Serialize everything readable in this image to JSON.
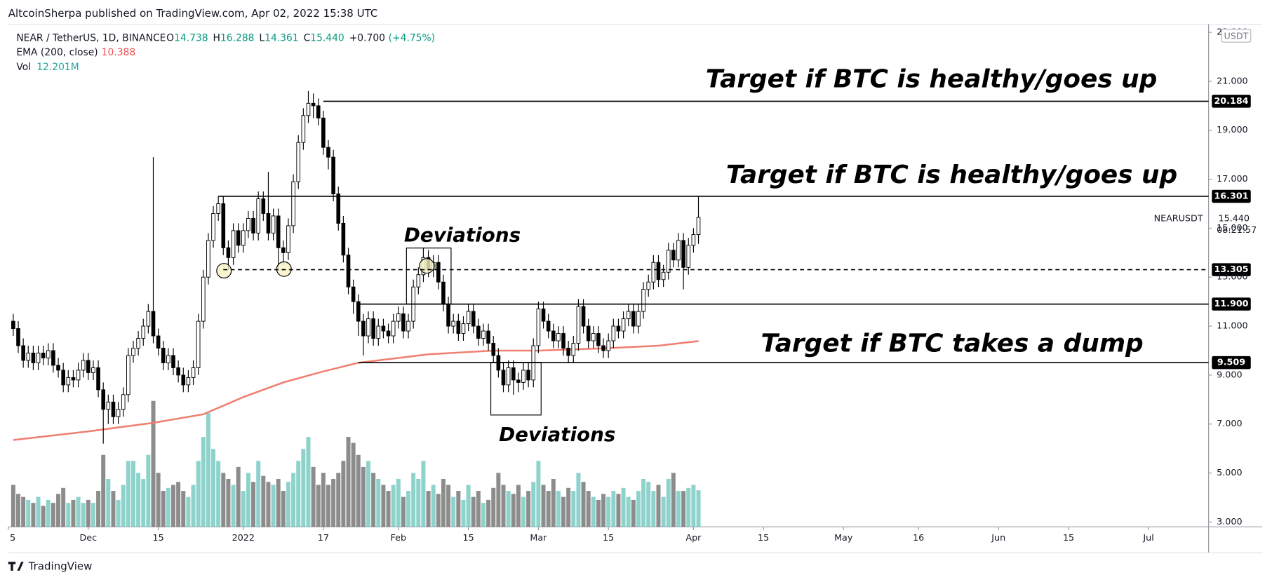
{
  "header": "AltcoinSherpa published on TradingView.com, Apr 02, 2022 15:38 UTC",
  "footer": "TradingView",
  "chart_data": {
    "type": "candlestick",
    "symbol_line": "NEAR / TetherUS, 1D, BINANCE",
    "ohlc_legend": [
      {
        "key": "O",
        "text": "14.738"
      },
      {
        "key": "H",
        "text": "16.288"
      },
      {
        "key": "L",
        "text": "14.361"
      },
      {
        "key": "C",
        "text": "15.440"
      },
      {
        "key": "+0.700",
        "text": "(+4.75%)"
      }
    ],
    "ema_legend": {
      "name": "EMA (200, close)",
      "text": "10.388"
    },
    "vol_legend": {
      "name": "Vol",
      "text": "12.201M"
    },
    "currency": "USDT",
    "last_label": {
      "symbol": "NEARUSDT",
      "price": "15.440",
      "countdown": "08:21:57"
    },
    "annotations": [
      "Target if BTC is healthy/goes up",
      "Target if BTC is healthy/goes up",
      "Target if BTC takes a dump",
      "Deviations",
      "Deviations"
    ],
    "up_color": "#ffffff",
    "down_color": "#000000",
    "volume_up_color": "#8ed3cb",
    "volume_down_color": "#8c8c8c",
    "ema_color": "#ef7f70",
    "grid": false,
    "xlim": [
      "2021-11-15",
      "2022-07-13"
    ],
    "ylim": [
      2.8,
      23.26
    ],
    "yticks": [
      {
        "value": 3,
        "label": "3.000"
      },
      {
        "value": 5,
        "label": "5.000"
      },
      {
        "value": 7,
        "label": "7.000"
      },
      {
        "value": 9,
        "label": "9.000"
      },
      {
        "value": 11,
        "label": "11.000"
      },
      {
        "value": 13,
        "label": "13.000"
      },
      {
        "value": 15,
        "label": "15.000"
      },
      {
        "value": 17,
        "label": "17.000"
      },
      {
        "value": 19,
        "label": "19.000"
      },
      {
        "value": 21,
        "label": "21.000"
      },
      {
        "value": 23,
        "label": "23.000"
      }
    ],
    "xticks": [
      {
        "value": "2021-11-15",
        "label": "5"
      },
      {
        "value": "2021-12-01",
        "label": "Dec"
      },
      {
        "value": "2021-12-15",
        "label": "15"
      },
      {
        "value": "2022-01-01",
        "label": "2022"
      },
      {
        "value": "2022-01-17",
        "label": "17"
      },
      {
        "value": "2022-02-01",
        "label": "Feb"
      },
      {
        "value": "2022-02-15",
        "label": "15"
      },
      {
        "value": "2022-03-01",
        "label": "Mar"
      },
      {
        "value": "2022-03-15",
        "label": "15"
      },
      {
        "value": "2022-04-01",
        "label": "Apr"
      },
      {
        "value": "2022-04-15",
        "label": "15"
      },
      {
        "value": "2022-05-01",
        "label": "May"
      },
      {
        "value": "2022-05-16",
        "label": "16"
      },
      {
        "value": "2022-06-01",
        "label": "Jun"
      },
      {
        "value": "2022-06-15",
        "label": "15"
      },
      {
        "value": "2022-07-01",
        "label": "Jul"
      }
    ],
    "levels": [
      {
        "value": 20.184,
        "start": "2022-01-17",
        "style": "solid"
      },
      {
        "value": 16.301,
        "start": "2021-12-27",
        "style": "solid"
      },
      {
        "value": 13.305,
        "start": "2021-12-28",
        "style": "dashed"
      },
      {
        "value": 11.9,
        "label": "11.900",
        "start": "2022-01-24",
        "style": "solid"
      },
      {
        "value": 9.509,
        "start": "2022-01-24",
        "style": "solid"
      }
    ],
    "ema": {
      "x": [
        "2021-11-16",
        "2021-12-01",
        "2021-12-14",
        "2021-12-24",
        "2022-01-01",
        "2022-01-09",
        "2022-01-17",
        "2022-01-24",
        "2022-02-07",
        "2022-02-20",
        "2022-03-01",
        "2022-03-15",
        "2022-03-25",
        "2022-04-02"
      ],
      "values": [
        6.35,
        6.7,
        7.05,
        7.4,
        8.1,
        8.7,
        9.15,
        9.5,
        9.85,
        10.0,
        10.0,
        10.1,
        10.2,
        10.388
      ]
    },
    "x": [
      "2021-11-16",
      "2021-11-17",
      "2021-11-18",
      "2021-11-19",
      "2021-11-20",
      "2021-11-21",
      "2021-11-22",
      "2021-11-23",
      "2021-11-24",
      "2021-11-25",
      "2021-11-26",
      "2021-11-27",
      "2021-11-28",
      "2021-11-29",
      "2021-11-30",
      "2021-12-01",
      "2021-12-02",
      "2021-12-03",
      "2021-12-04",
      "2021-12-05",
      "2021-12-06",
      "2021-12-07",
      "2021-12-08",
      "2021-12-09",
      "2021-12-10",
      "2021-12-11",
      "2021-12-12",
      "2021-12-13",
      "2021-12-14",
      "2021-12-15",
      "2021-12-16",
      "2021-12-17",
      "2021-12-18",
      "2021-12-19",
      "2021-12-20",
      "2021-12-21",
      "2021-12-22",
      "2021-12-23",
      "2021-12-24",
      "2021-12-25",
      "2021-12-26",
      "2021-12-27",
      "2021-12-28",
      "2021-12-29",
      "2021-12-30",
      "2021-12-31",
      "2022-01-01",
      "2022-01-02",
      "2022-01-03",
      "2022-01-04",
      "2022-01-05",
      "2022-01-06",
      "2022-01-07",
      "2022-01-08",
      "2022-01-09",
      "2022-01-10",
      "2022-01-11",
      "2022-01-12",
      "2022-01-13",
      "2022-01-14",
      "2022-01-15",
      "2022-01-16",
      "2022-01-17",
      "2022-01-18",
      "2022-01-19",
      "2022-01-20",
      "2022-01-21",
      "2022-01-22",
      "2022-01-23",
      "2022-01-24",
      "2022-01-25",
      "2022-01-26",
      "2022-01-27",
      "2022-01-28",
      "2022-01-29",
      "2022-01-30",
      "2022-01-31",
      "2022-02-01",
      "2022-02-02",
      "2022-02-03",
      "2022-02-04",
      "2022-02-05",
      "2022-02-06",
      "2022-02-07",
      "2022-02-08",
      "2022-02-09",
      "2022-02-10",
      "2022-02-11",
      "2022-02-12",
      "2022-02-13",
      "2022-02-14",
      "2022-02-15",
      "2022-02-16",
      "2022-02-17",
      "2022-02-18",
      "2022-02-19",
      "2022-02-20",
      "2022-02-21",
      "2022-02-22",
      "2022-02-23",
      "2022-02-24",
      "2022-02-25",
      "2022-02-26",
      "2022-02-27",
      "2022-02-28",
      "2022-03-01",
      "2022-03-02",
      "2022-03-03",
      "2022-03-04",
      "2022-03-05",
      "2022-03-06",
      "2022-03-07",
      "2022-03-08",
      "2022-03-09",
      "2022-03-10",
      "2022-03-11",
      "2022-03-12",
      "2022-03-13",
      "2022-03-14",
      "2022-03-15",
      "2022-03-16",
      "2022-03-17",
      "2022-03-18",
      "2022-03-19",
      "2022-03-20",
      "2022-03-21",
      "2022-03-22",
      "2022-03-23",
      "2022-03-24",
      "2022-03-25",
      "2022-03-26",
      "2022-03-27",
      "2022-03-28",
      "2022-03-29",
      "2022-03-30",
      "2022-03-31",
      "2022-04-01",
      "2022-04-02"
    ],
    "open": [
      11.2,
      10.9,
      10.2,
      9.6,
      9.9,
      9.5,
      9.9,
      9.7,
      10.0,
      9.4,
      9.2,
      8.6,
      8.9,
      8.8,
      9.2,
      9.6,
      9.1,
      9.3,
      8.4,
      7.6,
      7.9,
      7.3,
      7.6,
      8.2,
      9.8,
      10.1,
      10.5,
      11.0,
      11.6,
      10.6,
      10.1,
      9.5,
      9.8,
      9.3,
      9.0,
      8.6,
      8.9,
      9.3,
      11.2,
      13.0,
      14.5,
      15.6,
      16.0,
      14.2,
      13.8,
      14.9,
      14.3,
      14.9,
      15.4,
      14.8,
      16.2,
      15.6,
      14.8,
      15.5,
      14.2,
      14.0,
      15.1,
      16.9,
      18.5,
      19.6,
      20.1,
      20.0,
      19.5,
      18.3,
      17.9,
      16.4,
      15.2,
      13.9,
      12.6,
      12.0,
      11.2,
      10.6,
      11.3,
      10.5,
      11.0,
      10.8,
      10.6,
      11.2,
      11.5,
      10.8,
      11.2,
      12.6,
      13.1,
      13.8,
      13.3,
      13.6,
      12.8,
      11.9,
      11.0,
      11.2,
      10.7,
      11.1,
      11.6,
      11.0,
      10.5,
      10.8,
      10.3,
      9.8,
      9.2,
      8.6,
      9.3,
      8.8,
      8.7,
      9.2,
      8.8,
      10.2,
      11.7,
      11.2,
      10.8,
      10.4,
      10.7,
      10.1,
      9.8,
      10.3,
      11.8,
      11.0,
      10.4,
      10.7,
      10.2,
      10.0,
      10.4,
      11.0,
      10.8,
      11.3,
      11.6,
      11.0,
      11.6,
      12.5,
      12.8,
      13.6,
      12.9,
      13.2,
      14.1,
      13.7,
      14.5,
      13.4,
      14.3,
      14.738
    ],
    "high": [
      11.5,
      11.2,
      10.5,
      10.2,
      10.2,
      10.2,
      10.2,
      10.3,
      10.3,
      9.7,
      9.5,
      9.2,
      9.2,
      9.5,
      9.9,
      9.9,
      9.6,
      9.6,
      8.7,
      8.2,
      8.2,
      7.9,
      8.5,
      10.1,
      10.4,
      10.8,
      11.3,
      11.9,
      17.9,
      10.9,
      10.4,
      10.1,
      10.1,
      9.6,
      9.3,
      9.2,
      9.6,
      11.5,
      13.3,
      14.8,
      15.9,
      16.3,
      16.3,
      14.5,
      15.2,
      15.2,
      15.2,
      15.7,
      15.7,
      16.5,
      16.5,
      17.3,
      15.8,
      15.8,
      14.5,
      15.4,
      17.2,
      18.8,
      19.9,
      20.6,
      20.5,
      20.3,
      19.8,
      18.6,
      18.2,
      16.7,
      15.5,
      14.2,
      12.9,
      12.3,
      11.5,
      11.6,
      11.6,
      11.3,
      11.3,
      11.1,
      11.5,
      11.8,
      11.8,
      11.5,
      12.9,
      13.4,
      14.2,
      14.1,
      13.9,
      13.9,
      13.1,
      12.2,
      11.5,
      11.5,
      11.4,
      11.9,
      11.9,
      11.3,
      11.1,
      11.1,
      10.6,
      10.1,
      9.5,
      9.6,
      9.6,
      9.1,
      9.5,
      9.5,
      10.5,
      12.0,
      12.0,
      11.5,
      11.1,
      11.0,
      11.0,
      10.4,
      10.6,
      12.1,
      12.1,
      11.3,
      11.0,
      11.0,
      10.5,
      10.7,
      11.3,
      11.3,
      11.6,
      11.9,
      11.9,
      11.9,
      12.8,
      13.1,
      13.9,
      13.9,
      13.5,
      14.4,
      14.4,
      14.8,
      14.8,
      14.6,
      15.0,
      16.288
    ],
    "low": [
      10.6,
      9.9,
      9.3,
      9.3,
      9.2,
      9.2,
      9.4,
      9.4,
      9.1,
      8.9,
      8.3,
      8.3,
      8.5,
      8.5,
      8.9,
      8.8,
      8.8,
      8.1,
      6.2,
      7.0,
      7.0,
      7.0,
      7.3,
      7.9,
      9.5,
      9.8,
      10.2,
      10.7,
      10.3,
      9.8,
      9.2,
      9.2,
      9.0,
      8.7,
      8.3,
      8.3,
      8.6,
      9.0,
      10.9,
      12.7,
      14.2,
      15.3,
      13.9,
      13.3,
      13.5,
      14.0,
      14.0,
      14.6,
      14.5,
      14.5,
      15.3,
      14.5,
      14.5,
      13.3,
      13.5,
      13.7,
      14.8,
      16.6,
      18.2,
      19.3,
      19.5,
      19.2,
      18.0,
      17.4,
      16.1,
      14.9,
      13.6,
      12.3,
      11.5,
      10.6,
      9.8,
      10.3,
      10.2,
      10.2,
      10.5,
      10.3,
      10.3,
      10.9,
      10.5,
      10.5,
      10.9,
      12.3,
      12.8,
      13.0,
      13.0,
      12.5,
      11.6,
      10.7,
      10.7,
      10.4,
      10.4,
      10.8,
      10.7,
      10.2,
      10.2,
      10.0,
      9.5,
      8.9,
      8.3,
      8.3,
      8.2,
      8.3,
      8.4,
      8.5,
      8.5,
      9.9,
      10.9,
      10.5,
      10.1,
      10.1,
      9.8,
      9.5,
      9.5,
      10.0,
      10.7,
      10.1,
      10.1,
      9.9,
      9.7,
      9.7,
      10.1,
      10.5,
      10.5,
      11.0,
      10.7,
      10.7,
      11.3,
      12.2,
      12.5,
      12.6,
      12.6,
      12.9,
      13.4,
      13.4,
      12.5,
      13.1,
      14.0,
      14.361
    ],
    "close": [
      10.9,
      10.2,
      9.6,
      9.9,
      9.5,
      9.9,
      9.7,
      10.0,
      9.4,
      9.2,
      8.6,
      8.9,
      8.8,
      9.2,
      9.6,
      9.1,
      9.3,
      8.4,
      7.6,
      7.9,
      7.3,
      7.6,
      8.2,
      9.8,
      10.1,
      10.5,
      11.0,
      11.6,
      10.6,
      10.1,
      9.5,
      9.8,
      9.3,
      9.0,
      8.6,
      8.9,
      9.3,
      11.2,
      13.0,
      14.5,
      15.6,
      16.0,
      14.2,
      13.8,
      14.9,
      14.3,
      14.9,
      15.4,
      14.8,
      16.2,
      15.6,
      14.8,
      15.5,
      14.2,
      14.0,
      15.1,
      16.9,
      18.5,
      19.6,
      20.1,
      20.0,
      19.5,
      18.3,
      17.9,
      16.4,
      15.2,
      13.9,
      12.6,
      12.0,
      11.2,
      10.6,
      11.3,
      10.5,
      11.0,
      10.8,
      10.6,
      11.2,
      11.5,
      10.8,
      11.2,
      12.6,
      13.1,
      13.8,
      13.3,
      13.6,
      12.8,
      11.9,
      11.0,
      11.2,
      10.7,
      11.1,
      11.6,
      11.0,
      10.5,
      10.8,
      10.3,
      9.8,
      9.2,
      8.6,
      9.3,
      8.8,
      8.7,
      9.2,
      8.8,
      10.2,
      11.7,
      11.2,
      10.8,
      10.4,
      10.7,
      10.1,
      9.8,
      10.3,
      11.8,
      11.0,
      10.4,
      10.7,
      10.2,
      10.0,
      10.4,
      11.0,
      10.8,
      11.3,
      11.6,
      11.0,
      11.6,
      12.5,
      12.8,
      13.6,
      12.9,
      13.2,
      14.1,
      13.7,
      14.5,
      13.4,
      14.3,
      14.738,
      15.44
    ],
    "volume": [
      14,
      11,
      10,
      9,
      8,
      10,
      7,
      9,
      8,
      11,
      13,
      8,
      9,
      10,
      8,
      9,
      8,
      12,
      24,
      16,
      12,
      9,
      14,
      22,
      22,
      18,
      16,
      24,
      42,
      18,
      12,
      13,
      14,
      15,
      12,
      10,
      14,
      22,
      30,
      38,
      26,
      22,
      18,
      16,
      14,
      20,
      12,
      18,
      15,
      22,
      17,
      15,
      14,
      16,
      12,
      15,
      18,
      22,
      26,
      30,
      20,
      14,
      18,
      14,
      16,
      18,
      22,
      30,
      28,
      24,
      20,
      22,
      18,
      16,
      14,
      12,
      14,
      16,
      10,
      12,
      18,
      16,
      22,
      12,
      14,
      11,
      16,
      14,
      10,
      12,
      9,
      14,
      10,
      12,
      8,
      9,
      13,
      18,
      14,
      12,
      11,
      14,
      10,
      12,
      15,
      22,
      14,
      12,
      16,
      12,
      10,
      13,
      12,
      18,
      15,
      12,
      10,
      9,
      11,
      10,
      12,
      11,
      13,
      10,
      9,
      12,
      16,
      15,
      12,
      14,
      10,
      16,
      18,
      12,
      12,
      13,
      14,
      12.201
    ]
  }
}
